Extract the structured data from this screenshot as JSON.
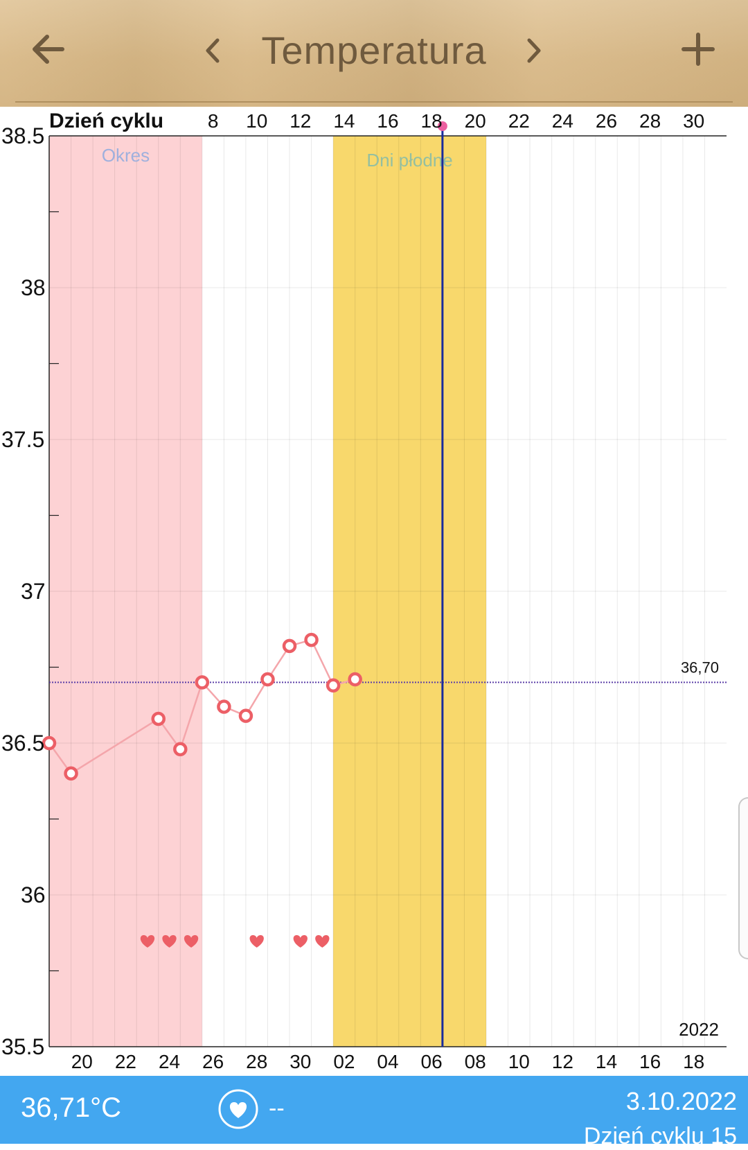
{
  "header": {
    "title": "Temperatura",
    "icons": {
      "back": "arrow-left-icon",
      "prev": "chevron-left-icon",
      "next": "chevron-right-icon",
      "add": "plus-icon"
    }
  },
  "chart_data": {
    "type": "line",
    "ylim": [
      35.5,
      38.5
    ],
    "y_ticks": [
      "35.5",
      "36",
      "36.5",
      "37",
      "37.5",
      "38",
      "38.5"
    ],
    "top_axis_label": "Dzień cyklu",
    "top_ticks": [
      "8",
      "10",
      "12",
      "14",
      "16",
      "18",
      "20",
      "22",
      "24",
      "26",
      "28",
      "30"
    ],
    "bottom_ticks": [
      "20",
      "22",
      "24",
      "26",
      "28",
      "30",
      "02",
      "04",
      "06",
      "08",
      "10",
      "12",
      "14",
      "16",
      "18"
    ],
    "year_label": "2022",
    "cycle_day_range": [
      1,
      31
    ],
    "series": [
      {
        "color": "#ec5f66",
        "points": [
          {
            "day": 1,
            "temp": 36.5
          },
          {
            "day": 2,
            "temp": 36.4
          },
          {
            "day": 6,
            "temp": 36.58
          },
          {
            "day": 7,
            "temp": 36.48
          },
          {
            "day": 8,
            "temp": 36.7
          },
          {
            "day": 9,
            "temp": 36.62
          },
          {
            "day": 10,
            "temp": 36.59
          },
          {
            "day": 11,
            "temp": 36.71
          },
          {
            "day": 12,
            "temp": 36.82
          },
          {
            "day": 13,
            "temp": 36.84
          },
          {
            "day": 14,
            "temp": 36.69
          },
          {
            "day": 15,
            "temp": 36.71
          }
        ]
      }
    ],
    "reference_line": {
      "value": 36.7,
      "label": "36,70",
      "color": "#5b3ea8"
    },
    "period_band": {
      "label": "Okres",
      "from_day": 1,
      "to_day": 8,
      "color": "#fdd2d4",
      "label_color": "#9fb0dd"
    },
    "fertile_band": {
      "label": "Dni płodne",
      "from_day": 14,
      "to_day": 21,
      "color": "#f8d86c",
      "label_color": "#94bfa0"
    },
    "ovulation_day": 19,
    "ovulation_line_color": "#1a2c9c",
    "ovulation_marker_color": "#ec5fa0",
    "intercourse_days": [
      5,
      6,
      7,
      10,
      12,
      13
    ],
    "heart_color": "#ec5f66"
  },
  "footer": {
    "temperature": "36,71°C",
    "heart_icon": "heart-icon",
    "heart_value": "--",
    "date": "3.10.2022",
    "cycle_day": "Dzień cyklu 15"
  }
}
